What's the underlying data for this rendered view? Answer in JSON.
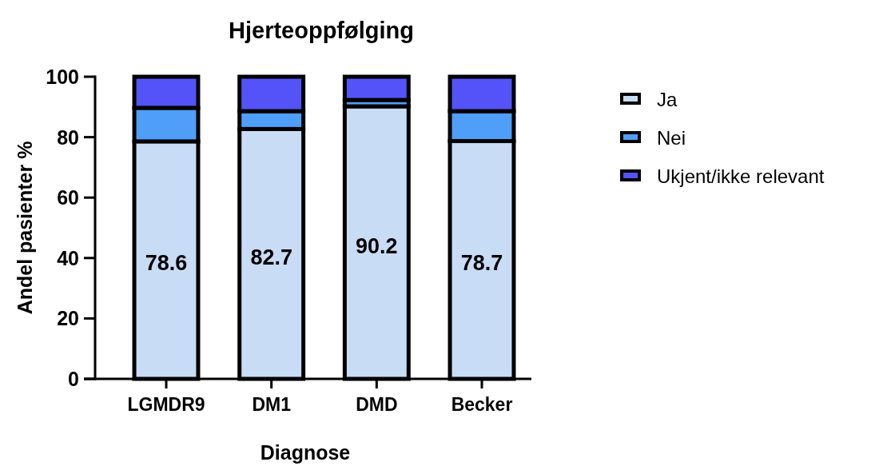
{
  "chart_data": {
    "type": "bar",
    "title": "Hjerteoppfølging",
    "xlabel": "Diagnose",
    "ylabel": "Andel pasienter %",
    "categories": [
      "LGMDR9",
      "DM1",
      "DMD",
      "Becker"
    ],
    "stacked": true,
    "series": [
      {
        "name": "Ja",
        "color": "#c9dcf5",
        "values": [
          78.6,
          82.7,
          90.2,
          78.7
        ],
        "value_labels": [
          "78.6",
          "82.7",
          "90.2",
          "78.7"
        ]
      },
      {
        "name": "Nei",
        "color": "#4f9ef7",
        "values": [
          11.1,
          5.9,
          2.1,
          9.9
        ]
      },
      {
        "name": "Ukjent/ikke relevant",
        "color": "#5353f7",
        "values": [
          10.3,
          11.4,
          7.7,
          11.4
        ]
      }
    ],
    "ylim": [
      0,
      100
    ],
    "yticks": [
      0,
      20,
      40,
      60,
      80,
      100
    ],
    "legend": "right"
  }
}
